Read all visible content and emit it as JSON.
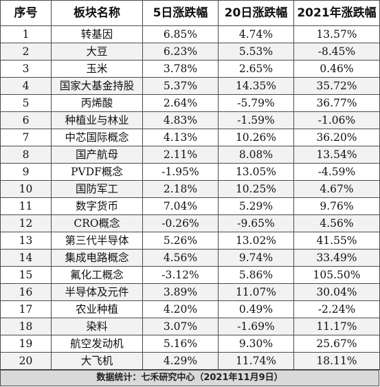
{
  "table": {
    "headers": [
      "序号",
      "板块名称",
      "5日涨跌幅",
      "20日涨跌幅",
      "2021年涨跌幅"
    ],
    "rows": [
      [
        "1",
        "转基因",
        "6.85%",
        "4.74%",
        "13.57%"
      ],
      [
        "2",
        "大豆",
        "6.23%",
        "5.53%",
        "-8.45%"
      ],
      [
        "3",
        "玉米",
        "3.78%",
        "2.65%",
        "0.46%"
      ],
      [
        "4",
        "国家大基金持股",
        "5.37%",
        "14.35%",
        "35.72%"
      ],
      [
        "5",
        "丙烯酸",
        "2.64%",
        "-5.79%",
        "36.77%"
      ],
      [
        "6",
        "种植业与林业",
        "4.83%",
        "-1.59%",
        "-1.06%"
      ],
      [
        "7",
        "中芯国际概念",
        "4.13%",
        "10.26%",
        "36.20%"
      ],
      [
        "8",
        "国产航母",
        "2.11%",
        "8.08%",
        "13.54%"
      ],
      [
        "9",
        "PVDF概念",
        "-1.95%",
        "13.05%",
        "-4.59%"
      ],
      [
        "10",
        "国防军工",
        "2.18%",
        "10.25%",
        "4.67%"
      ],
      [
        "11",
        "数字货币",
        "7.04%",
        "5.29%",
        "9.76%"
      ],
      [
        "12",
        "CRO概念",
        "-0.26%",
        "-9.65%",
        "4.56%"
      ],
      [
        "13",
        "第三代半导体",
        "5.26%",
        "13.02%",
        "41.55%"
      ],
      [
        "14",
        "集成电路概念",
        "4.56%",
        "9.74%",
        "33.49%"
      ],
      [
        "15",
        "氟化工概念",
        "-3.12%",
        "5.86%",
        "105.50%"
      ],
      [
        "16",
        "半导体及元件",
        "3.89%",
        "11.07%",
        "30.04%"
      ],
      [
        "17",
        "农业种植",
        "4.20%",
        "0.49%",
        "-2.24%"
      ],
      [
        "18",
        "染料",
        "3.07%",
        "-1.69%",
        "11.17%"
      ],
      [
        "19",
        "航空发动机",
        "5.16%",
        "9.30%",
        "25.67%"
      ],
      [
        "20",
        "大飞机",
        "4.29%",
        "11.74%",
        "18.11%"
      ]
    ]
  },
  "footer": {
    "text": "数据统计：七禾研究中心（2021年11月9日）"
  }
}
